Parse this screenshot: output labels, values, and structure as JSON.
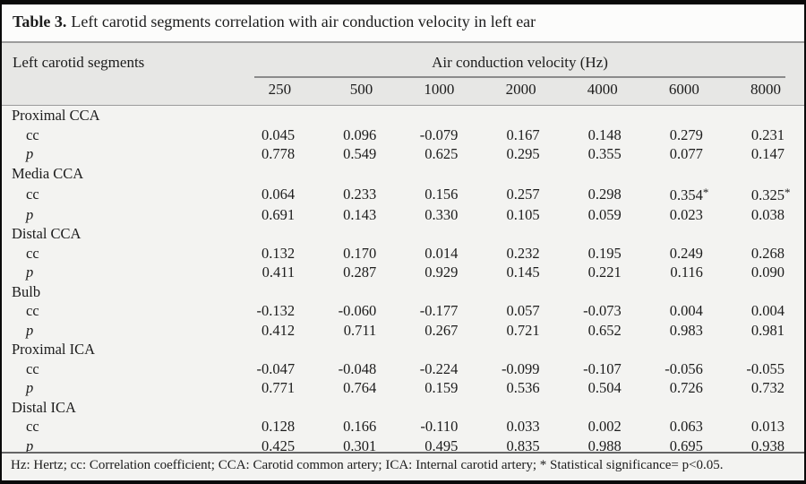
{
  "title": {
    "prefix": "Table 3.",
    "text": "Left carotid segments correlation with air conduction velocity in left ear"
  },
  "table": {
    "left_header": "Left carotid segments",
    "group_header": "Air conduction velocity (Hz)",
    "frequencies": [
      "250",
      "500",
      "1000",
      "2000",
      "4000",
      "6000",
      "8000"
    ],
    "row_labels": {
      "cc": "cc",
      "p": "p"
    },
    "segments": [
      {
        "name": "Proximal CCA",
        "cc": [
          "0.045",
          "0.096",
          "-0.079",
          "0.167",
          "0.148",
          "0.279",
          "0.231"
        ],
        "p": [
          "0.778",
          "0.549",
          "0.625",
          "0.295",
          "0.355",
          "0.077",
          "0.147"
        ]
      },
      {
        "name": "Media CCA",
        "cc": [
          "0.064",
          "0.233",
          "0.156",
          "0.257",
          "0.298",
          "0.354*",
          "0.325*"
        ],
        "p": [
          "0.691",
          "0.143",
          "0.330",
          "0.105",
          "0.059",
          "0.023",
          "0.038"
        ]
      },
      {
        "name": "Distal CCA",
        "cc": [
          "0.132",
          "0.170",
          "0.014",
          "0.232",
          "0.195",
          "0.249",
          "0.268"
        ],
        "p": [
          "0.411",
          "0.287",
          "0.929",
          "0.145",
          "0.221",
          "0.116",
          "0.090"
        ]
      },
      {
        "name": "Bulb",
        "cc": [
          "-0.132",
          "-0.060",
          "-0.177",
          "0.057",
          "-0.073",
          "0.004",
          "0.004"
        ],
        "p": [
          "0.412",
          "0.711",
          "0.267",
          "0.721",
          "0.652",
          "0.983",
          "0.981"
        ]
      },
      {
        "name": "Proximal ICA",
        "cc": [
          "-0.047",
          "-0.048",
          "-0.224",
          "-0.099",
          "-0.107",
          "-0.056",
          "-0.055"
        ],
        "p": [
          "0.771",
          "0.764",
          "0.159",
          "0.536",
          "0.504",
          "0.726",
          "0.732"
        ]
      },
      {
        "name": "Distal ICA",
        "cc": [
          "0.128",
          "0.166",
          "-0.110",
          "0.033",
          "0.002",
          "0.063",
          "0.013"
        ],
        "p": [
          "0.425",
          "0.301",
          "0.495",
          "0.835",
          "0.988",
          "0.695",
          "0.938"
        ]
      }
    ]
  },
  "footnote": "Hz: Hertz; cc: Correlation coefficient; CCA: Carotid common artery; ICA: Internal carotid artery; * Statistical significance= p<0.05.",
  "colors": {
    "frame": "#0a0a0a",
    "title_bg": "#fcfcfb",
    "header_bg": "#e7e7e5",
    "body_bg": "#f3f3f1",
    "rule_gray": "#9c9c9c"
  }
}
